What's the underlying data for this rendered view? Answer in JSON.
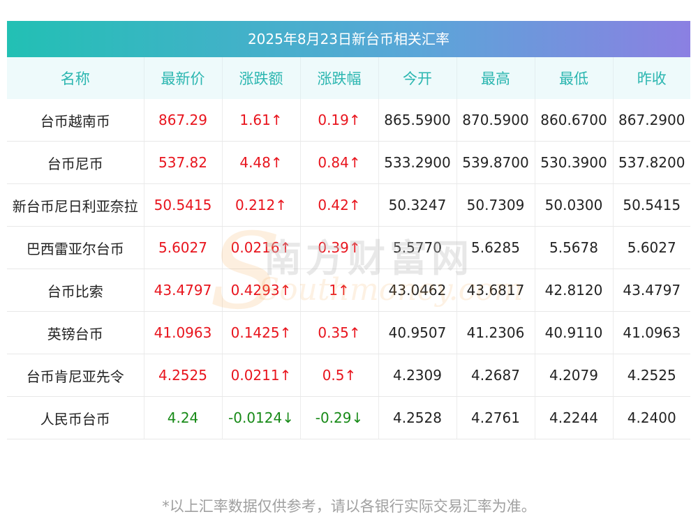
{
  "title": "2025年8月23日新台币相关汇率",
  "headers": [
    "名称",
    "最新价",
    "涨跌额",
    "涨跌幅",
    "今开",
    "最高",
    "最低",
    "昨收"
  ],
  "rows": [
    {
      "name": "台币越南币",
      "latest": "867.29",
      "change": "1.61↑",
      "pct": "0.19↑",
      "open": "865.5900",
      "high": "870.5900",
      "low": "860.6700",
      "prev": "867.2900",
      "dir": "up"
    },
    {
      "name": "台币尼币",
      "latest": "537.82",
      "change": "4.48↑",
      "pct": "0.84↑",
      "open": "533.2900",
      "high": "539.8700",
      "low": "530.3900",
      "prev": "537.8200",
      "dir": "up"
    },
    {
      "name": "新台币尼日利亚奈拉",
      "latest": "50.5415",
      "change": "0.212↑",
      "pct": "0.42↑",
      "open": "50.3247",
      "high": "50.7309",
      "low": "50.0300",
      "prev": "50.5415",
      "dir": "up"
    },
    {
      "name": "巴西雷亚尔台币",
      "latest": "5.6027",
      "change": "0.0216↑",
      "pct": "0.39↑",
      "open": "5.5770",
      "high": "5.6285",
      "low": "5.5678",
      "prev": "5.6027",
      "dir": "up"
    },
    {
      "name": "台币比索",
      "latest": "43.4797",
      "change": "0.4293↑",
      "pct": "1↑",
      "open": "43.0462",
      "high": "43.6817",
      "low": "42.8120",
      "prev": "43.4797",
      "dir": "up"
    },
    {
      "name": "英镑台币",
      "latest": "41.0963",
      "change": "0.1425↑",
      "pct": "0.35↑",
      "open": "40.9507",
      "high": "41.2306",
      "low": "40.9110",
      "prev": "41.0963",
      "dir": "up"
    },
    {
      "name": "台币肯尼亚先令",
      "latest": "4.2525",
      "change": "0.0211↑",
      "pct": "0.5↑",
      "open": "4.2309",
      "high": "4.2687",
      "low": "4.2079",
      "prev": "4.2525",
      "dir": "up"
    },
    {
      "name": "人民币台币",
      "latest": "4.24",
      "change": "-0.0124↓",
      "pct": "-0.29↓",
      "open": "4.2528",
      "high": "4.2761",
      "low": "4.2244",
      "prev": "4.2400",
      "dir": "down"
    }
  ],
  "footnote": "*以上汇率数据仅供参考，请以各银行实际交易汇率为准。",
  "watermark": {
    "cn": "南方财富网",
    "en": "Southmoney.com"
  },
  "colors": {
    "up": "#e8141d",
    "down": "#188a18",
    "header_text": "#2bb6b0"
  }
}
